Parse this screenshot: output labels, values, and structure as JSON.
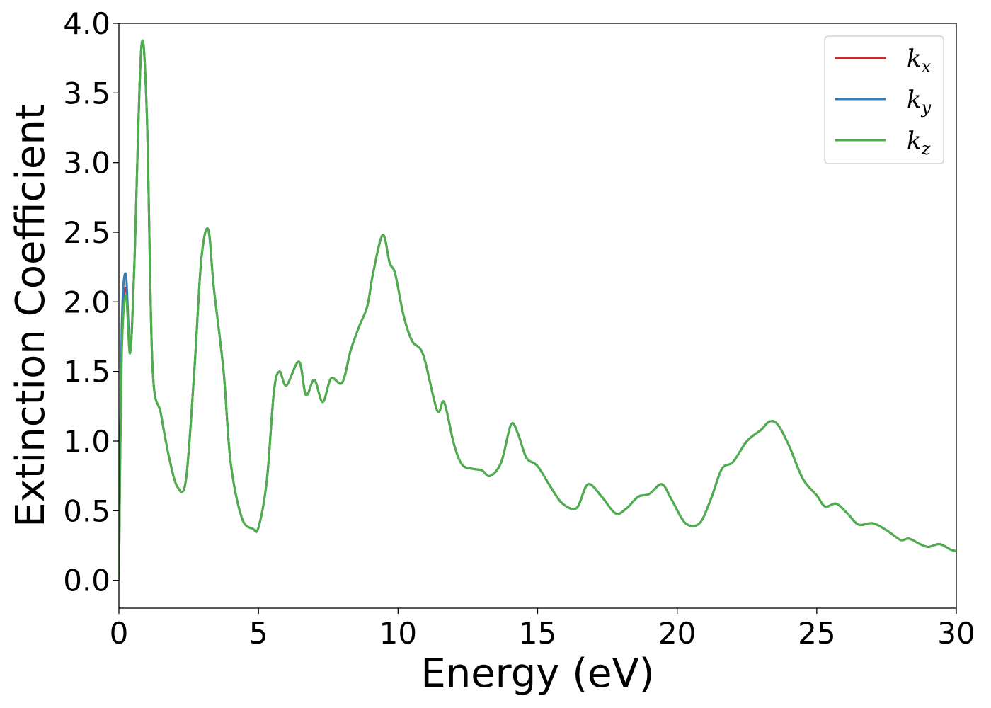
{
  "chart_data": {
    "type": "line",
    "title": "",
    "xlabel": "Energy (eV)",
    "ylabel": "Extinction Coefficient",
    "xlim": [
      0,
      30
    ],
    "ylim": [
      -0.2,
      4.0
    ],
    "x_ticks": [
      0,
      5,
      10,
      15,
      20,
      25,
      30
    ],
    "x_tick_labels": [
      "0",
      "5",
      "10",
      "15",
      "20",
      "25",
      "30"
    ],
    "y_ticks": [
      0.0,
      0.5,
      1.0,
      1.5,
      2.0,
      2.5,
      3.0,
      3.5,
      4.0
    ],
    "y_tick_labels": [
      "0.0",
      "0.5",
      "1.0",
      "1.5",
      "2.0",
      "2.5",
      "3.0",
      "3.5",
      "4.0"
    ],
    "grid": false,
    "legend_position": "top-right",
    "series": [
      {
        "name": "k_x",
        "label_base": "k",
        "label_sub": "x",
        "color": "#d62728",
        "x": [
          0,
          0.1,
          0.25,
          0.4,
          0.55,
          0.8,
          1.0,
          1.2,
          1.5,
          1.8,
          2.1,
          2.4,
          2.7,
          2.95,
          3.2,
          3.4,
          3.75,
          4.0,
          4.4,
          4.8,
          5.0,
          5.3,
          5.55,
          5.75,
          6.0,
          6.45,
          6.7,
          7.0,
          7.3,
          7.6,
          8.0,
          8.3,
          8.6,
          8.9,
          9.1,
          9.45,
          9.7,
          9.9,
          10.2,
          10.5,
          10.9,
          11.4,
          11.65,
          12.0,
          12.3,
          12.7,
          13.0,
          13.3,
          13.7,
          14.05,
          14.3,
          14.6,
          15.0,
          15.5,
          15.9,
          16.4,
          16.8,
          17.3,
          17.8,
          18.2,
          18.6,
          19.0,
          19.45,
          19.8,
          20.3,
          20.8,
          21.2,
          21.6,
          22.0,
          22.5,
          23.0,
          23.3,
          23.6,
          24.0,
          24.5,
          25.0,
          25.3,
          25.7,
          26.1,
          26.5,
          27.0,
          27.5,
          28.0,
          28.3,
          28.7,
          29.0,
          29.4,
          29.8,
          30.0
        ],
        "values": [
          0.0,
          1.7,
          2.1,
          1.65,
          2.25,
          3.82,
          3.35,
          1.55,
          1.2,
          0.88,
          0.67,
          0.72,
          1.5,
          2.3,
          2.52,
          2.1,
          1.5,
          0.85,
          0.45,
          0.37,
          0.38,
          0.72,
          1.35,
          1.5,
          1.4,
          1.57,
          1.33,
          1.44,
          1.28,
          1.45,
          1.42,
          1.65,
          1.82,
          1.97,
          2.2,
          2.48,
          2.28,
          2.2,
          1.9,
          1.72,
          1.62,
          1.22,
          1.28,
          0.98,
          0.83,
          0.8,
          0.79,
          0.75,
          0.85,
          1.12,
          1.05,
          0.88,
          0.82,
          0.66,
          0.55,
          0.52,
          0.69,
          0.6,
          0.48,
          0.52,
          0.6,
          0.62,
          0.69,
          0.58,
          0.41,
          0.41,
          0.58,
          0.8,
          0.85,
          1.0,
          1.08,
          1.14,
          1.12,
          0.97,
          0.73,
          0.61,
          0.53,
          0.55,
          0.48,
          0.4,
          0.41,
          0.36,
          0.29,
          0.3,
          0.26,
          0.24,
          0.26,
          0.22,
          0.21
        ]
      },
      {
        "name": "k_y",
        "label_base": "k",
        "label_sub": "y",
        "color": "#377eb8",
        "x": [
          0,
          0.1,
          0.25,
          0.4,
          0.55,
          0.8,
          1.0,
          1.2,
          1.5,
          1.8,
          2.1,
          2.4,
          2.7,
          2.95,
          3.2,
          3.4,
          3.75,
          4.0,
          4.4,
          4.8,
          5.0,
          5.3,
          5.55,
          5.75,
          6.0,
          6.45,
          6.7,
          7.0,
          7.3,
          7.6,
          8.0,
          8.3,
          8.6,
          8.9,
          9.1,
          9.45,
          9.7,
          9.9,
          10.2,
          10.5,
          10.9,
          11.4,
          11.65,
          12.0,
          12.3,
          12.7,
          13.0,
          13.3,
          13.7,
          14.05,
          14.3,
          14.6,
          15.0,
          15.5,
          15.9,
          16.4,
          16.8,
          17.3,
          17.8,
          18.2,
          18.6,
          19.0,
          19.45,
          19.8,
          20.3,
          20.8,
          21.2,
          21.6,
          22.0,
          22.5,
          23.0,
          23.3,
          23.6,
          24.0,
          24.5,
          25.0,
          25.3,
          25.7,
          26.1,
          26.5,
          27.0,
          27.5,
          28.0,
          28.3,
          28.7,
          29.0,
          29.4,
          29.8,
          30.0
        ],
        "values": [
          0.0,
          1.8,
          2.2,
          1.65,
          2.25,
          3.82,
          3.35,
          1.55,
          1.2,
          0.88,
          0.67,
          0.72,
          1.5,
          2.3,
          2.52,
          2.1,
          1.5,
          0.85,
          0.45,
          0.37,
          0.38,
          0.72,
          1.35,
          1.5,
          1.4,
          1.57,
          1.33,
          1.44,
          1.28,
          1.45,
          1.42,
          1.65,
          1.82,
          1.97,
          2.2,
          2.48,
          2.28,
          2.2,
          1.9,
          1.72,
          1.62,
          1.22,
          1.28,
          0.98,
          0.83,
          0.8,
          0.79,
          0.75,
          0.85,
          1.12,
          1.05,
          0.88,
          0.82,
          0.66,
          0.55,
          0.52,
          0.69,
          0.6,
          0.48,
          0.52,
          0.6,
          0.62,
          0.69,
          0.58,
          0.41,
          0.41,
          0.58,
          0.8,
          0.85,
          1.0,
          1.08,
          1.14,
          1.12,
          0.97,
          0.73,
          0.61,
          0.53,
          0.55,
          0.48,
          0.4,
          0.41,
          0.36,
          0.29,
          0.3,
          0.26,
          0.24,
          0.26,
          0.22,
          0.21
        ]
      },
      {
        "name": "k_z",
        "label_base": "k",
        "label_sub": "z",
        "color": "#4daf4a",
        "x": [
          0,
          0.1,
          0.25,
          0.4,
          0.55,
          0.8,
          1.0,
          1.2,
          1.5,
          1.8,
          2.1,
          2.4,
          2.7,
          2.95,
          3.2,
          3.4,
          3.75,
          4.0,
          4.4,
          4.8,
          5.0,
          5.3,
          5.55,
          5.75,
          6.0,
          6.45,
          6.7,
          7.0,
          7.3,
          7.6,
          8.0,
          8.3,
          8.6,
          8.9,
          9.1,
          9.45,
          9.7,
          9.9,
          10.2,
          10.5,
          10.9,
          11.4,
          11.65,
          12.0,
          12.3,
          12.7,
          13.0,
          13.3,
          13.7,
          14.05,
          14.3,
          14.6,
          15.0,
          15.5,
          15.9,
          16.4,
          16.8,
          17.3,
          17.8,
          18.2,
          18.6,
          19.0,
          19.45,
          19.8,
          20.3,
          20.8,
          21.2,
          21.6,
          22.0,
          22.5,
          23.0,
          23.3,
          23.6,
          24.0,
          24.5,
          25.0,
          25.3,
          25.7,
          26.1,
          26.5,
          27.0,
          27.5,
          28.0,
          28.3,
          28.7,
          29.0,
          29.4,
          29.8,
          30.0
        ],
        "values": [
          0.0,
          1.6,
          2.05,
          1.63,
          2.25,
          3.82,
          3.35,
          1.55,
          1.2,
          0.88,
          0.67,
          0.72,
          1.5,
          2.3,
          2.52,
          2.1,
          1.5,
          0.85,
          0.45,
          0.37,
          0.38,
          0.72,
          1.35,
          1.5,
          1.4,
          1.57,
          1.33,
          1.44,
          1.28,
          1.45,
          1.42,
          1.65,
          1.82,
          1.97,
          2.2,
          2.48,
          2.28,
          2.2,
          1.9,
          1.72,
          1.62,
          1.22,
          1.28,
          0.98,
          0.83,
          0.8,
          0.79,
          0.75,
          0.85,
          1.12,
          1.05,
          0.88,
          0.82,
          0.66,
          0.55,
          0.52,
          0.69,
          0.6,
          0.48,
          0.52,
          0.6,
          0.62,
          0.69,
          0.58,
          0.41,
          0.41,
          0.58,
          0.8,
          0.85,
          1.0,
          1.08,
          1.14,
          1.12,
          0.97,
          0.73,
          0.61,
          0.53,
          0.55,
          0.48,
          0.4,
          0.41,
          0.36,
          0.29,
          0.3,
          0.26,
          0.24,
          0.26,
          0.22,
          0.21
        ]
      }
    ]
  }
}
